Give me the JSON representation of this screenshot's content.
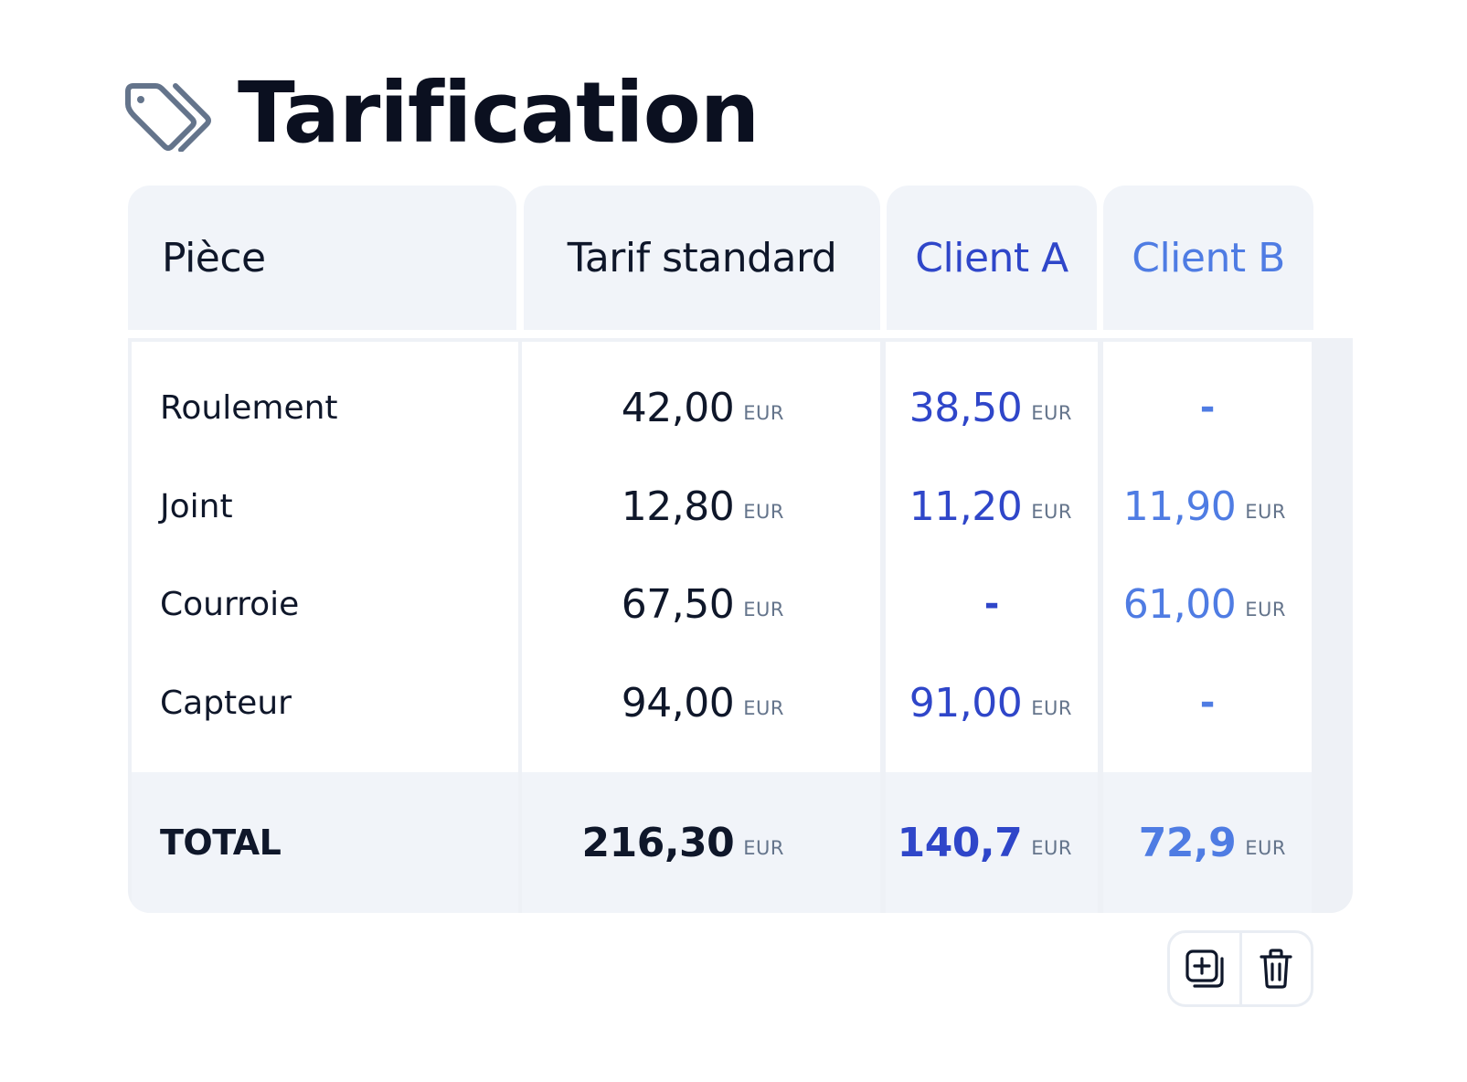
{
  "title": {
    "text": "Tarification",
    "icon": "price-tags-icon"
  },
  "table": {
    "headers": {
      "piece": "Pièce",
      "standard": "Tarif standard",
      "client_a": "Client A",
      "client_b": "Client B"
    },
    "currency": "EUR",
    "rows": [
      {
        "piece": "Roulement",
        "standard": "42,00",
        "client_a": "38,50",
        "client_b": "-"
      },
      {
        "piece": "Joint",
        "standard": "12,80",
        "client_a": "11,20",
        "client_b": "11,90"
      },
      {
        "piece": "Courroie",
        "standard": "67,50",
        "client_a": "-",
        "client_b": "61,00"
      },
      {
        "piece": "Capteur",
        "standard": "94,00",
        "client_a": "91,00",
        "client_b": "-"
      }
    ],
    "total": {
      "label": "TOTAL",
      "standard": "216,30",
      "client_a": "140,7",
      "client_b": "72,9"
    }
  },
  "colors": {
    "standard": "#0f172a",
    "client_a": "#2f46c9",
    "client_b": "#4f7ce3",
    "header_bg": "#f1f4f9"
  },
  "actions": {
    "add_icon": "add-copy-icon",
    "delete_icon": "trash-icon"
  }
}
